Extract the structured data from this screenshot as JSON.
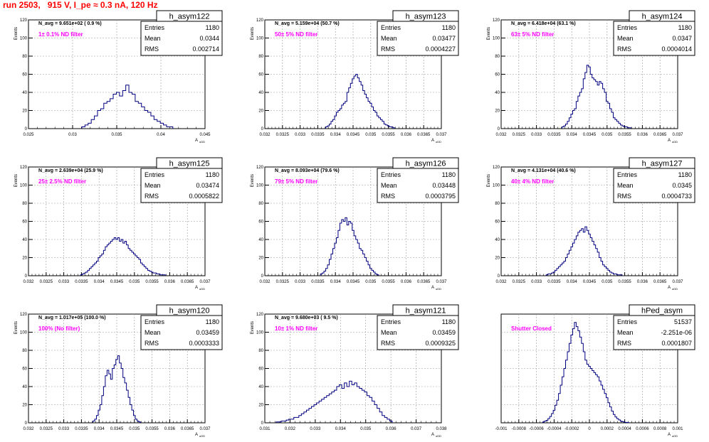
{
  "run_title": "run 2503,   915 V, I_pe ≈ 0.3 nA, 120 Hz",
  "colors": {
    "hist": "#000080",
    "annotation": "#ff00ff",
    "run_title": "#ff0000",
    "grid": "#999999"
  },
  "chart_data": [
    {
      "type": "histogram",
      "name": "h_asym122",
      "entries": "1180",
      "mean": "0.0344",
      "rms": "0.002714",
      "navg": "N_avg = 9.651e+02 ( 0.9 %)",
      "annotation": "1± 0.1% ND filter",
      "xlabel": "A uDD",
      "ylabel": "Events",
      "xlim": [
        0.0225,
        0.045
      ],
      "ylim": [
        0,
        120
      ],
      "xticks": [
        "0.025",
        "0.03",
        "0.035",
        "0.04",
        "0.045"
      ],
      "yticks": [
        "0",
        "20",
        "40",
        "60",
        "80",
        "100",
        "120"
      ],
      "bin_width": 0.0004,
      "x": [
        0.0295,
        0.0299,
        0.0303,
        0.0307,
        0.0311,
        0.0315,
        0.0319,
        0.0323,
        0.0327,
        0.0331,
        0.0335,
        0.0339,
        0.0343,
        0.0347,
        0.0351,
        0.0355,
        0.0359,
        0.0363,
        0.0367,
        0.0371,
        0.0375,
        0.0379,
        0.0383,
        0.0387,
        0.0391,
        0.0395,
        0.0399,
        0.0403,
        0.0407
      ],
      "y": [
        2,
        4,
        6,
        10,
        14,
        20,
        22,
        28,
        30,
        33,
        38,
        40,
        36,
        42,
        48,
        40,
        38,
        30,
        28,
        24,
        20,
        18,
        14,
        10,
        8,
        6,
        4,
        2,
        2
      ]
    },
    {
      "type": "histogram",
      "name": "h_asym123",
      "entries": "1180",
      "mean": "0.03477",
      "rms": "0.0004227",
      "navg": "N_avg = 5.159e+04 (50.7 %)",
      "annotation": "50± 5% ND filter",
      "xlabel": "A uDD",
      "ylabel": "Events",
      "xlim": [
        0.032,
        0.037
      ],
      "ylim": [
        0,
        120
      ],
      "xticks": [
        "0.032",
        "0.0325",
        "0.033",
        "0.0335",
        "0.034",
        "0.0345",
        "0.035",
        "0.0355",
        "0.036",
        "0.0365",
        "0.037"
      ],
      "yticks": [
        "0",
        "20",
        "40",
        "60",
        "80",
        "100",
        "120"
      ],
      "bin_width": 5e-05,
      "x": [
        0.03375,
        0.0338,
        0.03385,
        0.0339,
        0.03395,
        0.034,
        0.03405,
        0.0341,
        0.03415,
        0.0342,
        0.03425,
        0.0343,
        0.03435,
        0.0344,
        0.03445,
        0.0345,
        0.03455,
        0.0346,
        0.03465,
        0.0347,
        0.03475,
        0.0348,
        0.03485,
        0.0349,
        0.03495,
        0.035,
        0.03505,
        0.0351,
        0.03515,
        0.0352,
        0.03525,
        0.0353,
        0.03535,
        0.0354,
        0.03545,
        0.0355,
        0.03555,
        0.0356,
        0.03565
      ],
      "y": [
        2,
        3,
        5,
        8,
        10,
        14,
        18,
        20,
        22,
        26,
        28,
        30,
        40,
        45,
        50,
        55,
        58,
        60,
        56,
        52,
        48,
        42,
        38,
        34,
        30,
        28,
        24,
        20,
        18,
        14,
        12,
        10,
        8,
        5,
        4,
        3,
        2,
        2,
        1
      ]
    },
    {
      "type": "histogram",
      "name": "h_asym124",
      "entries": "1180",
      "mean": "0.0347",
      "rms": "0.0004014",
      "navg": "N_avg = 6.418e+04 (63.1 %)",
      "annotation": "63± 5% ND filter",
      "xlabel": "A uDD",
      "ylabel": "Events",
      "xlim": [
        0.032,
        0.037
      ],
      "ylim": [
        0,
        120
      ],
      "xticks": [
        "0.032",
        "0.0325",
        "0.033",
        "0.0335",
        "0.034",
        "0.0345",
        "0.035",
        "0.0355",
        "0.036",
        "0.0365",
        "0.037"
      ],
      "yticks": [
        "0",
        "20",
        "40",
        "60",
        "80",
        "100",
        "120"
      ],
      "bin_width": 5e-05,
      "x": [
        0.03375,
        0.0338,
        0.03385,
        0.0339,
        0.03395,
        0.034,
        0.03405,
        0.0341,
        0.03415,
        0.0342,
        0.03425,
        0.0343,
        0.03435,
        0.0344,
        0.03445,
        0.0345,
        0.03455,
        0.0346,
        0.03465,
        0.0347,
        0.03475,
        0.0348,
        0.03485,
        0.0349,
        0.03495,
        0.035,
        0.03505,
        0.0351,
        0.03515,
        0.0352,
        0.03525,
        0.0353,
        0.03535,
        0.0354,
        0.03545,
        0.0355,
        0.03555,
        0.0356,
        0.03565
      ],
      "y": [
        2,
        3,
        5,
        8,
        12,
        16,
        20,
        22,
        30,
        36,
        40,
        44,
        55,
        62,
        70,
        68,
        60,
        56,
        54,
        52,
        48,
        52,
        50,
        44,
        40,
        30,
        28,
        22,
        18,
        12,
        10,
        8,
        6,
        4,
        3,
        2,
        2,
        1,
        1
      ]
    },
    {
      "type": "histogram",
      "name": "h_asym125",
      "entries": "1180",
      "mean": "0.03474",
      "rms": "0.0005822",
      "navg": "N_avg = 2.639e+04 (25.9 %)",
      "annotation": "25± 2.5% ND filter",
      "xlabel": "A uDD",
      "ylabel": "Events",
      "xlim": [
        0.032,
        0.037
      ],
      "ylim": [
        0,
        120
      ],
      "xticks": [
        "0.032",
        "0.0325",
        "0.033",
        "0.0335",
        "0.034",
        "0.0345",
        "0.035",
        "0.0355",
        "0.036",
        "0.0365",
        "0.037"
      ],
      "yticks": [
        "0",
        "20",
        "40",
        "60",
        "80",
        "100",
        "120"
      ],
      "bin_width": 5e-05,
      "x": [
        0.0335,
        0.03355,
        0.0336,
        0.03365,
        0.0337,
        0.03375,
        0.0338,
        0.03385,
        0.0339,
        0.03395,
        0.034,
        0.03405,
        0.0341,
        0.03415,
        0.0342,
        0.03425,
        0.0343,
        0.03435,
        0.0344,
        0.03445,
        0.0345,
        0.03455,
        0.0346,
        0.03465,
        0.0347,
        0.03475,
        0.0348,
        0.03485,
        0.0349,
        0.03495,
        0.035,
        0.03505,
        0.0351,
        0.03515,
        0.0352,
        0.03525,
        0.0353,
        0.03535,
        0.0354,
        0.03545,
        0.0355,
        0.03555,
        0.0356,
        0.03565,
        0.0357,
        0.03575,
        0.0358,
        0.03585
      ],
      "y": [
        1,
        2,
        3,
        4,
        6,
        8,
        10,
        12,
        14,
        16,
        20,
        22,
        24,
        28,
        32,
        34,
        36,
        38,
        40,
        42,
        40,
        42,
        38,
        40,
        36,
        38,
        34,
        30,
        28,
        26,
        24,
        22,
        20,
        18,
        14,
        12,
        10,
        8,
        6,
        5,
        4,
        3,
        3,
        2,
        2,
        1,
        1,
        1
      ]
    },
    {
      "type": "histogram",
      "name": "h_asym126",
      "entries": "1180",
      "mean": "0.03448",
      "rms": "0.0003795",
      "navg": "N_avg = 8.093e+04 (79.6 %)",
      "annotation": "79± 5% ND filter",
      "xlabel": "A uDD",
      "ylabel": "Events",
      "xlim": [
        0.032,
        0.037
      ],
      "ylim": [
        0,
        120
      ],
      "xticks": [
        "0.032",
        "0.0325",
        "0.033",
        "0.0335",
        "0.034",
        "0.0345",
        "0.035",
        "0.0355",
        "0.036",
        "0.0365",
        "0.037"
      ],
      "yticks": [
        "0",
        "20",
        "40",
        "60",
        "80",
        "100",
        "120"
      ],
      "bin_width": 5e-05,
      "x": [
        0.0336,
        0.03365,
        0.0337,
        0.03375,
        0.0338,
        0.03385,
        0.0339,
        0.03395,
        0.034,
        0.03405,
        0.0341,
        0.03415,
        0.0342,
        0.03425,
        0.0343,
        0.03435,
        0.0344,
        0.03445,
        0.0345,
        0.03455,
        0.0346,
        0.03465,
        0.0347,
        0.03475,
        0.0348,
        0.03485,
        0.0349,
        0.03495,
        0.035,
        0.03505,
        0.0351,
        0.03515,
        0.0352
      ],
      "y": [
        2,
        3,
        5,
        8,
        12,
        18,
        24,
        30,
        36,
        42,
        50,
        58,
        62,
        60,
        64,
        56,
        60,
        58,
        50,
        44,
        40,
        36,
        30,
        28,
        24,
        20,
        16,
        12,
        8,
        6,
        4,
        2,
        1
      ]
    },
    {
      "type": "histogram",
      "name": "h_asym127",
      "entries": "1180",
      "mean": "0.0345",
      "rms": "0.0004733",
      "navg": "N_avg = 4.131e+04 (40.6 %)",
      "annotation": "40± 4% ND filter",
      "xlabel": "A uDD",
      "ylabel": "Events",
      "xlim": [
        0.032,
        0.037
      ],
      "ylim": [
        0,
        120
      ],
      "xticks": [
        "0.032",
        "0.0325",
        "0.033",
        "0.0335",
        "0.034",
        "0.0345",
        "0.035",
        "0.0355",
        "0.036",
        "0.0365",
        "0.037"
      ],
      "yticks": [
        "0",
        "20",
        "40",
        "60",
        "80",
        "100",
        "120"
      ],
      "bin_width": 5e-05,
      "x": [
        0.0333,
        0.03335,
        0.0334,
        0.03345,
        0.0335,
        0.03355,
        0.0336,
        0.03365,
        0.0337,
        0.03375,
        0.0338,
        0.03385,
        0.0339,
        0.03395,
        0.034,
        0.03405,
        0.0341,
        0.03415,
        0.0342,
        0.03425,
        0.0343,
        0.03435,
        0.0344,
        0.03445,
        0.0345,
        0.03455,
        0.0346,
        0.03465,
        0.0347,
        0.03475,
        0.0348,
        0.03485,
        0.0349,
        0.03495,
        0.035,
        0.03505,
        0.0351,
        0.03515,
        0.0352,
        0.03525,
        0.0353,
        0.03535,
        0.0354
      ],
      "y": [
        1,
        2,
        2,
        3,
        4,
        6,
        8,
        10,
        12,
        14,
        16,
        20,
        24,
        28,
        32,
        36,
        40,
        44,
        48,
        50,
        52,
        48,
        54,
        50,
        46,
        42,
        38,
        34,
        30,
        26,
        20,
        16,
        12,
        10,
        8,
        6,
        4,
        3,
        2,
        2,
        1,
        1,
        1
      ]
    },
    {
      "type": "histogram",
      "name": "h_asym120",
      "entries": "1180",
      "mean": "0.03459",
      "rms": "0.0003333",
      "navg": "N_avg = 1.017e+05 (100.0 %)",
      "annotation": "100% (No filter)",
      "xlabel": "A uDD",
      "ylabel": "Events",
      "xlim": [
        0.032,
        0.037
      ],
      "ylim": [
        0,
        120
      ],
      "xticks": [
        "0.032",
        "0.0325",
        "0.033",
        "0.0335",
        "0.034",
        "0.0345",
        "0.035",
        "0.0355",
        "0.036",
        "0.0365",
        "0.037"
      ],
      "yticks": [
        "0",
        "20",
        "40",
        "60",
        "80",
        "100",
        "120"
      ],
      "bin_width": 5e-05,
      "x": [
        0.03385,
        0.0339,
        0.03395,
        0.034,
        0.03405,
        0.0341,
        0.03415,
        0.0342,
        0.03425,
        0.0343,
        0.03435,
        0.0344,
        0.03445,
        0.0345,
        0.03455,
        0.0346,
        0.03465,
        0.0347,
        0.03475,
        0.0348,
        0.03485,
        0.0349,
        0.03495,
        0.035,
        0.03505,
        0.0351,
        0.03515
      ],
      "y": [
        2,
        4,
        8,
        14,
        20,
        30,
        40,
        52,
        58,
        54,
        48,
        60,
        64,
        70,
        74,
        66,
        60,
        50,
        44,
        36,
        28,
        20,
        14,
        8,
        4,
        2,
        1
      ]
    },
    {
      "type": "histogram",
      "name": "h_asym121",
      "entries": "1180",
      "mean": "0.03459",
      "rms": "0.0009325",
      "navg": "N_avg = 9.680e+03 ( 9.5 %)",
      "annotation": "10± 1% ND filter",
      "xlabel": "A uDD",
      "ylabel": "Events",
      "xlim": [
        0.031,
        0.038
      ],
      "ylim": [
        0,
        120
      ],
      "xticks": [
        "0.031",
        "0.032",
        "0.033",
        "0.034",
        "0.035",
        "0.036",
        "0.037",
        "0.038"
      ],
      "yticks": [
        "0",
        "20",
        "40",
        "60",
        "80",
        "100",
        "120"
      ],
      "bin_width": 0.0001,
      "x": [
        0.0315,
        0.0316,
        0.0317,
        0.0318,
        0.0319,
        0.032,
        0.0321,
        0.0322,
        0.0323,
        0.0324,
        0.0325,
        0.0326,
        0.0327,
        0.0328,
        0.0329,
        0.033,
        0.0331,
        0.0332,
        0.0333,
        0.0334,
        0.0335,
        0.0336,
        0.0337,
        0.0338,
        0.0339,
        0.034,
        0.0341,
        0.0342,
        0.0343,
        0.0344,
        0.0345,
        0.0346,
        0.0347,
        0.0348,
        0.0349,
        0.035,
        0.0351,
        0.0352,
        0.0353,
        0.0354,
        0.0355,
        0.0356,
        0.0357,
        0.0358,
        0.0359,
        0.036
      ],
      "y": [
        1,
        1,
        2,
        2,
        3,
        4,
        4,
        6,
        6,
        8,
        10,
        12,
        14,
        16,
        18,
        20,
        22,
        24,
        26,
        28,
        30,
        32,
        34,
        36,
        40,
        42,
        38,
        44,
        40,
        46,
        42,
        44,
        40,
        38,
        36,
        34,
        30,
        28,
        24,
        20,
        16,
        12,
        8,
        6,
        4,
        2
      ]
    },
    {
      "type": "histogram",
      "name": "hPed_asym",
      "entries": "51537",
      "mean": "-2.251e-06",
      "rms": "0.0001807",
      "navg": "",
      "annotation": "Shutter Closed",
      "xlabel": "A uDD",
      "ylabel": "",
      "xlim": [
        -0.001,
        0.001
      ],
      "ylim": [
        0,
        2600
      ],
      "xticks": [
        "-0.001",
        "-0.0008",
        "-0.0006",
        "-0.0004",
        "-0.0002",
        "0",
        "0.0002",
        "0.0004",
        "0.0006",
        "0.0008",
        "0.001"
      ],
      "yticks": [],
      "bin_width": 2e-05,
      "x": [
        -0.00052,
        -0.0005,
        -0.00048,
        -0.00046,
        -0.00044,
        -0.00042,
        -0.0004,
        -0.00038,
        -0.00036,
        -0.00034,
        -0.00032,
        -0.0003,
        -0.00028,
        -0.00026,
        -0.00024,
        -0.00022,
        -0.0002,
        -0.00018,
        -0.00016,
        -0.00014,
        -0.00012,
        -0.0001,
        -8e-05,
        -6e-05,
        -4e-05,
        -2e-05,
        0,
        2e-05,
        4e-05,
        6e-05,
        8e-05,
        0.0001,
        0.00012,
        0.00014,
        0.00016,
        0.00018,
        0.0002,
        0.00022,
        0.00024,
        0.00026,
        0.00028,
        0.0003,
        0.00032,
        0.00034,
        0.00036,
        0.00038,
        0.0004,
        0.00042,
        0.00044
      ],
      "y": [
        20,
        40,
        60,
        100,
        150,
        220,
        300,
        420,
        540,
        700,
        900,
        1100,
        1300,
        1500,
        1700,
        1900,
        2100,
        2250,
        2400,
        2300,
        2200,
        2050,
        1900,
        1700,
        1500,
        1400,
        1350,
        1300,
        1250,
        1200,
        1150,
        1100,
        1000,
        900,
        800,
        700,
        600,
        480,
        380,
        280,
        200,
        140,
        100,
        70,
        40,
        25,
        15,
        8,
        4
      ]
    }
  ]
}
